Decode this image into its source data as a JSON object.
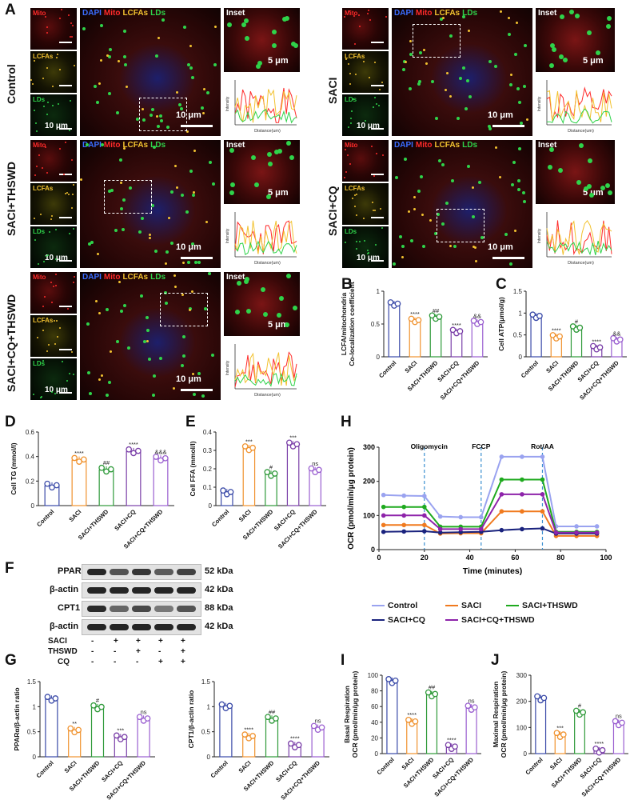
{
  "panels": {
    "A": "A",
    "B": "B",
    "C": "C",
    "D": "D",
    "E": "E",
    "F": "F",
    "G": "G",
    "H": "H",
    "I": "I",
    "J": "J"
  },
  "micro": {
    "channels": {
      "mito": "Mito",
      "lcfa": "LCFAs",
      "lds": "LDs"
    },
    "merge_label": {
      "dapi": "DAPI",
      "mito": "Mito",
      "lcfa": "LCFAs",
      "lds": "LDs"
    },
    "inset": "Inset",
    "scale_small": "10 μm",
    "scale_big": "10 μm",
    "scale_inset": "5 μm",
    "intensity": "Intensity",
    "distance": "Distance(um)",
    "rows": [
      "Control",
      "SACI",
      "SACI+THSWD",
      "SACI+CQ",
      "SACI+CQ+THSWD"
    ],
    "colors": {
      "mito": "#ff2a2a",
      "lcfa": "#f2c230",
      "lds": "#2fd34a",
      "dapi": "#3b6dff"
    }
  },
  "groups": [
    "Control",
    "SACI",
    "SACI+THSWD",
    "SACI+CQ",
    "SACI+CQ+THSWD"
  ],
  "group_colors": [
    "#3a4aa8",
    "#f0922e",
    "#2f9a3a",
    "#7a3fa8",
    "#9a5fd0"
  ],
  "western": {
    "proteins": [
      "PPARα",
      "β-actin",
      "CPT1",
      "β-actin"
    ],
    "kda": [
      "52 kDa",
      "42 kDa",
      "88 kDa",
      "42 kDa"
    ],
    "treatments": [
      {
        "name": "SACI",
        "signs": [
          "-",
          "+",
          "+",
          "+",
          "+"
        ]
      },
      {
        "name": "THSWD",
        "signs": [
          "-",
          "-",
          "+",
          "-",
          "+"
        ]
      },
      {
        "name": "CQ",
        "signs": [
          "-",
          "-",
          "-",
          "+",
          "+"
        ]
      }
    ]
  },
  "seahorse_legend": [
    "Control",
    "SACI",
    "SACI+THSWD",
    "SACI+CQ",
    "SACI+CQ+THSWD"
  ],
  "chart_data": [
    {
      "id": "B",
      "type": "bar",
      "ylabel": "LCFA/mitochondria Co-localization coefficient",
      "ylim": [
        0.0,
        1.0
      ],
      "yticks": [
        0.0,
        0.5,
        1.0
      ],
      "categories": [
        "Control",
        "SACI",
        "SACI+THSWD",
        "SACI+CQ",
        "SACI+CQ+THSWD"
      ],
      "values": [
        0.8,
        0.55,
        0.6,
        0.38,
        0.52
      ],
      "annotations": [
        "",
        "****",
        "##",
        "****",
        "&&"
      ]
    },
    {
      "id": "C",
      "type": "bar",
      "ylabel": "Cell ATP(μmol/g)",
      "ylim": [
        0.0,
        1.5
      ],
      "yticks": [
        0.0,
        0.5,
        1.0,
        1.5
      ],
      "categories": [
        "Control",
        "SACI",
        "SACI+THSWD",
        "SACI+CQ",
        "SACI+CQ+THSWD"
      ],
      "values": [
        0.92,
        0.45,
        0.65,
        0.2,
        0.38
      ],
      "annotations": [
        "",
        "****",
        "#",
        "****",
        "&&"
      ]
    },
    {
      "id": "D",
      "type": "bar",
      "ylabel": "Cell TG (mmol/l)",
      "ylim": [
        0.0,
        0.6
      ],
      "yticks": [
        0.0,
        0.2,
        0.4,
        0.6
      ],
      "categories": [
        "Control",
        "SACI",
        "SACI+THSWD",
        "SACI+CQ",
        "SACI+CQ+THSWD"
      ],
      "values": [
        0.16,
        0.37,
        0.29,
        0.44,
        0.38
      ],
      "annotations": [
        "",
        "****",
        "##",
        "****",
        "&&&"
      ]
    },
    {
      "id": "E",
      "type": "bar",
      "ylabel": "Cell FFA (mmol/l)",
      "ylim": [
        0.0,
        0.4
      ],
      "yticks": [
        0.0,
        0.1,
        0.2,
        0.3,
        0.4
      ],
      "categories": [
        "Control",
        "SACI",
        "SACI+THSWD",
        "SACI+CQ",
        "SACI+CQ+THSWD"
      ],
      "values": [
        0.07,
        0.31,
        0.17,
        0.33,
        0.19
      ],
      "annotations": [
        "",
        "***",
        "#",
        "***",
        "ns"
      ]
    },
    {
      "id": "G1",
      "type": "bar",
      "ylabel": "PPARα/β-actin ratio",
      "ylim": [
        0.0,
        1.5
      ],
      "yticks": [
        0.0,
        0.5,
        1.0,
        1.5
      ],
      "categories": [
        "Control",
        "SACI",
        "SACI+THSWD",
        "SACI+CQ",
        "SACI+CQ+THSWD"
      ],
      "values": [
        1.15,
        0.52,
        0.98,
        0.38,
        0.75
      ],
      "annotations": [
        "",
        "**",
        "#",
        "***",
        "ns"
      ]
    },
    {
      "id": "G2",
      "type": "bar",
      "ylabel": "CPT1/β-actin ratio",
      "ylim": [
        0.0,
        1.5
      ],
      "yticks": [
        0.0,
        0.5,
        1.0,
        1.5
      ],
      "categories": [
        "Control",
        "SACI",
        "SACI+THSWD",
        "SACI+CQ",
        "SACI+CQ+THSWD"
      ],
      "values": [
        1.0,
        0.4,
        0.75,
        0.22,
        0.57
      ],
      "annotations": [
        "",
        "****",
        "##",
        "****",
        "ns"
      ]
    },
    {
      "id": "I",
      "type": "bar",
      "ylabel": "Basal Respiration OCR (pmol/min/μg protein)",
      "ylim": [
        0,
        100
      ],
      "yticks": [
        0,
        20,
        40,
        60,
        80,
        100
      ],
      "categories": [
        "Control",
        "SACI",
        "SACI+THSWD",
        "SACI+CQ",
        "SACI+CQ+THSWD"
      ],
      "values": [
        92,
        40,
        75,
        8,
        58
      ],
      "annotations": [
        "",
        "****",
        "##",
        "****",
        "ns"
      ]
    },
    {
      "id": "J",
      "type": "bar",
      "ylabel": "Maximal Respiration OCR (pmol/min/μg protein)",
      "ylim": [
        0,
        300
      ],
      "yticks": [
        0,
        100,
        200,
        300
      ],
      "categories": [
        "Control",
        "SACI",
        "SACI+THSWD",
        "SACI+CQ",
        "SACI+CQ+THSWD"
      ],
      "values": [
        210,
        70,
        155,
        10,
        115
      ],
      "annotations": [
        "",
        "***",
        "#",
        "****",
        "ns"
      ]
    },
    {
      "id": "H",
      "type": "line",
      "xlabel": "Time (minutes)",
      "ylabel": "OCR (pmol/min/μg protein)",
      "xlim": [
        0,
        100
      ],
      "ylim": [
        0,
        300
      ],
      "xticks": [
        0,
        20,
        40,
        60,
        80,
        100
      ],
      "yticks": [
        0,
        100,
        200,
        300
      ],
      "markers": [
        {
          "label": "Oligomycin",
          "x": 20
        },
        {
          "label": "FCCP",
          "x": 45
        },
        {
          "label": "Rot/AA",
          "x": 72
        }
      ],
      "x": [
        2,
        11,
        20,
        27,
        36,
        45,
        54,
        63,
        72,
        78,
        87,
        96
      ],
      "series": [
        {
          "name": "Control",
          "color": "#9aa3f0",
          "values": [
            160,
            158,
            157,
            97,
            95,
            95,
            272,
            272,
            272,
            68,
            68,
            68
          ]
        },
        {
          "name": "SACI",
          "color": "#f07a1f",
          "values": [
            72,
            72,
            72,
            47,
            48,
            48,
            112,
            112,
            112,
            40,
            40,
            40
          ]
        },
        {
          "name": "SACI+THSWD",
          "color": "#1faa1f",
          "values": [
            125,
            125,
            125,
            67,
            67,
            67,
            205,
            205,
            205,
            52,
            52,
            52
          ]
        },
        {
          "name": "SACI+CQ",
          "color": "#1a237e",
          "values": [
            52,
            53,
            54,
            50,
            51,
            52,
            57,
            60,
            62,
            47,
            47,
            47
          ]
        },
        {
          "name": "SACI+CQ+THSWD",
          "color": "#8e24aa",
          "values": [
            100,
            100,
            100,
            60,
            60,
            60,
            162,
            162,
            162,
            50,
            50,
            50
          ]
        }
      ]
    }
  ]
}
